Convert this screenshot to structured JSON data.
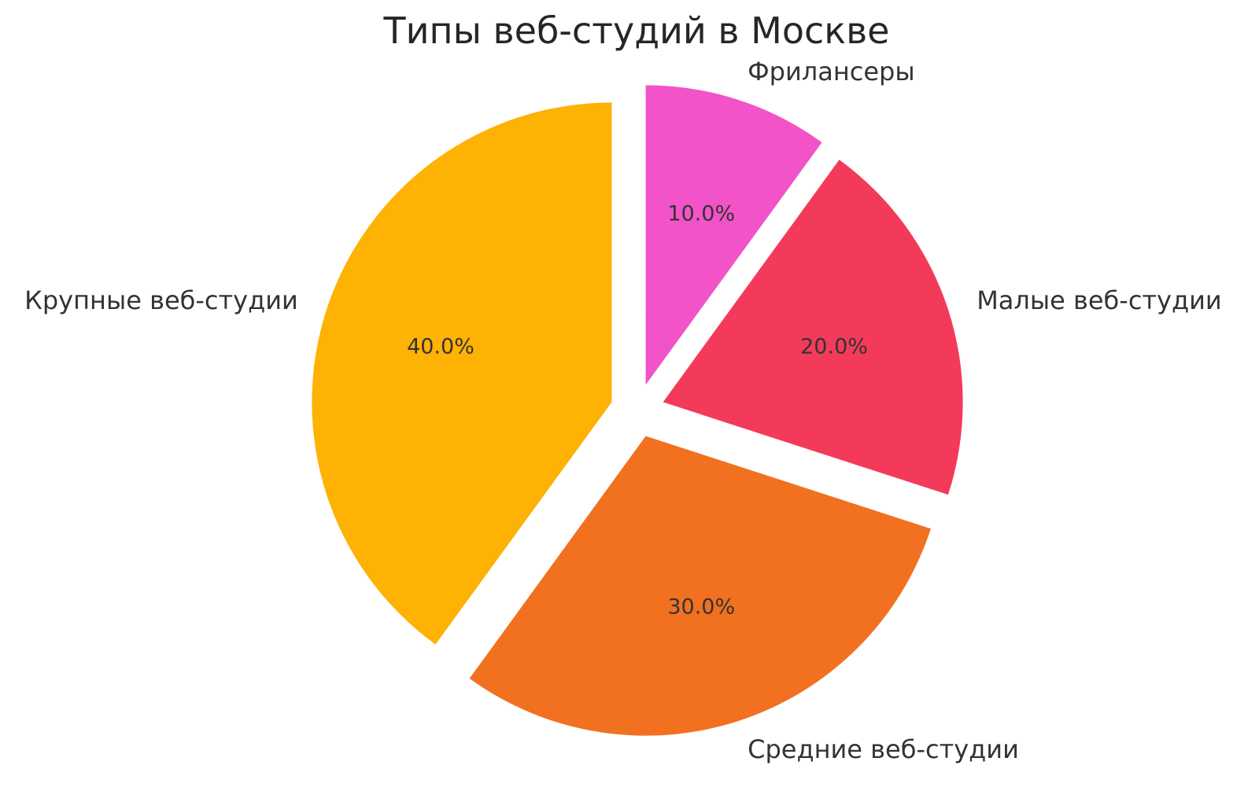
{
  "chart_data": {
    "type": "pie",
    "title": "Типы веб-студий в Москве",
    "categories": [
      "Фрилансеры",
      "Малые веб-студии",
      "Средние веб-студии",
      "Крупные веб-студии"
    ],
    "values": [
      10.0,
      20.0,
      30.0,
      40.0
    ],
    "slices": [
      {
        "label": "Фрилансеры",
        "value": 10.0,
        "pct_label": "10.0%",
        "color": "#F253C8"
      },
      {
        "label": "Малые веб-студии",
        "value": 20.0,
        "pct_label": "20.0%",
        "color": "#F43A5B"
      },
      {
        "label": "Средние веб-студии",
        "value": 30.0,
        "pct_label": "30.0%",
        "color": "#F17121"
      },
      {
        "label": "Крупные веб-студии",
        "value": 40.0,
        "pct_label": "40.0%",
        "color": "#FEB204"
      }
    ],
    "start_angle_deg": 90,
    "direction": "clockwise",
    "explode": 0.09,
    "pct_distance": 0.6,
    "label_distance": 1.1,
    "legend": "none",
    "background": "#ffffff",
    "title_color": "#262626",
    "text_color": "#333333"
  }
}
